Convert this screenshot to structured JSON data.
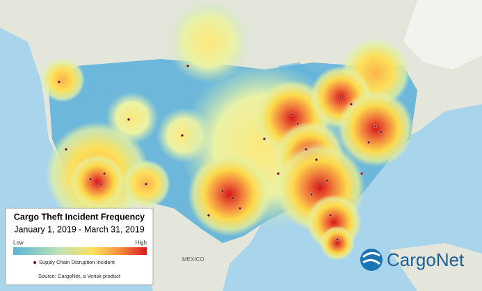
{
  "legend": {
    "title": "Cargo Theft  Incident Frequency",
    "date_range": "January 1, 2019 - March 31, 2019",
    "low": "Low",
    "high": "High",
    "marker_label": "Supply Chain Disruption Incident",
    "source": "Source: CargoNet, a Verisk product"
  },
  "logo": {
    "text": "CargoNet"
  },
  "map_labels": {
    "mexico": "MEXICO"
  }
}
